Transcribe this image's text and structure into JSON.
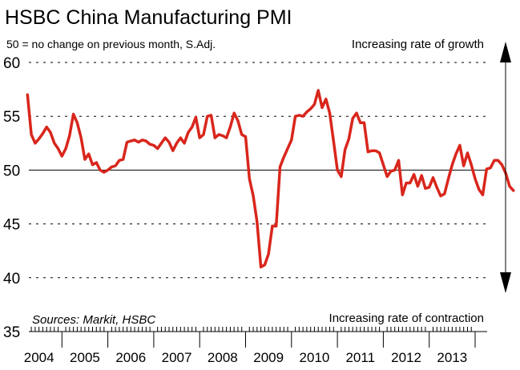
{
  "chart_data": {
    "type": "line",
    "title": "HSBC China Manufacturing PMI",
    "subtitle": "50 = no change on previous month, S.Adj.",
    "annotations": {
      "top_right": "Increasing rate of growth",
      "bottom_right": "Increasing rate of contraction",
      "source": "Sources: Markit, HSBC"
    },
    "xlabel": "",
    "ylabel": "",
    "ylim": [
      35,
      60
    ],
    "yticks": [
      "35",
      "40",
      "45",
      "50",
      "55",
      "60"
    ],
    "xticks": [
      "2004",
      "2005",
      "2006",
      "2007",
      "2008",
      "2009",
      "2010",
      "2011",
      "2012",
      "2013"
    ],
    "reference_line": 50,
    "grid": "dashed horizontal at 40, 45, 55, 60",
    "x_start": "2004-04",
    "x_end": "2013-12",
    "series": [
      {
        "color": "#d9261c",
        "values": [
          57,
          53.3,
          52.5,
          52.9,
          53.4,
          54.0,
          53.5,
          52.5,
          52.0,
          51.3,
          52.0,
          53.2,
          55.2,
          54.4,
          53.0,
          51.0,
          51.5,
          50.5,
          50.7,
          50.0,
          49.8,
          50.0,
          50.3,
          50.4,
          50.9,
          51.0,
          52.6,
          52.7,
          52.8,
          52.6,
          52.8,
          52.7,
          52.4,
          52.3,
          52.0,
          52.5,
          53.0,
          52.6,
          51.8,
          52.5,
          53.0,
          52.5,
          53.5,
          54.0,
          54.9,
          53.0,
          53.3,
          55.0,
          55.1,
          53.0,
          53.3,
          53.2,
          53.0,
          54.0,
          55.3,
          54.6,
          53.3,
          53.1,
          49.2,
          47.6,
          45.2,
          41.0,
          41.2,
          42.2,
          44.8,
          44.8,
          50.3,
          51.2,
          52.0,
          52.8,
          55.0,
          55.1,
          55.0,
          55.4,
          55.7,
          56.1,
          57.4,
          55.8,
          56.6,
          55.3,
          52.7,
          50.0,
          49.4,
          51.9,
          52.9,
          54.8,
          55.3,
          54.4,
          54.4,
          51.7,
          51.8,
          51.8,
          51.6,
          50.5,
          49.4,
          49.9,
          50.0,
          50.9,
          47.7,
          48.8,
          48.8,
          49.6,
          48.5,
          49.5,
          48.3,
          48.4,
          49.3,
          48.4,
          47.6,
          47.8,
          49.2,
          50.5,
          51.5,
          52.3,
          50.4,
          51.6,
          50.5,
          49.2,
          48.2,
          47.7,
          50.1,
          50.2,
          50.9,
          50.9,
          50.5,
          49.7,
          48.5,
          48.1
        ]
      }
    ]
  }
}
